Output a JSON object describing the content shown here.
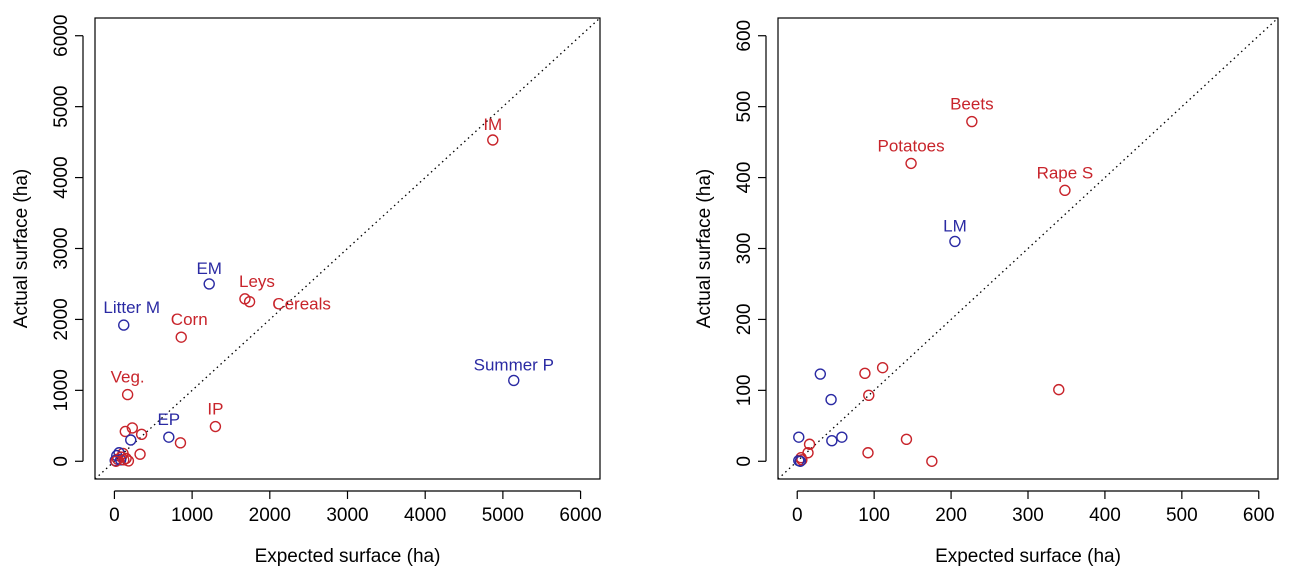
{
  "colors": {
    "red": "#c8242b",
    "blue": "#2a2aa3",
    "axis": "#000000"
  },
  "chart_data": [
    {
      "type": "scatter",
      "xlabel": "Expected surface (ha)",
      "ylabel": "Actual surface (ha)",
      "xlim": [
        -250,
        6250
      ],
      "ylim": [
        -250,
        6250
      ],
      "xticks": [
        0,
        1000,
        2000,
        3000,
        4000,
        5000,
        6000
      ],
      "yticks": [
        0,
        1000,
        2000,
        3000,
        4000,
        5000,
        6000
      ],
      "reference_line": "y = x",
      "points": [
        {
          "x": 4870,
          "y": 4530,
          "color": "red",
          "label": "IM"
        },
        {
          "x": 1220,
          "y": 2500,
          "color": "blue",
          "label": "EM"
        },
        {
          "x": 1680,
          "y": 2290,
          "color": "red",
          "label": "Leys"
        },
        {
          "x": 1740,
          "y": 2250,
          "color": "red",
          "label": "Cereals"
        },
        {
          "x": 120,
          "y": 1920,
          "color": "blue",
          "label": "Litter M"
        },
        {
          "x": 860,
          "y": 1750,
          "color": "red",
          "label": "Corn"
        },
        {
          "x": 5140,
          "y": 1140,
          "color": "blue",
          "label": "Summer P"
        },
        {
          "x": 170,
          "y": 940,
          "color": "red",
          "label": "Veg."
        },
        {
          "x": 1300,
          "y": 490,
          "color": "red",
          "label": "IP"
        },
        {
          "x": 700,
          "y": 340,
          "color": "blue",
          "label": "EP"
        },
        {
          "x": 230,
          "y": 470,
          "color": "red",
          "label": ""
        },
        {
          "x": 140,
          "y": 420,
          "color": "red",
          "label": ""
        },
        {
          "x": 350,
          "y": 380,
          "color": "red",
          "label": ""
        },
        {
          "x": 210,
          "y": 300,
          "color": "blue",
          "label": ""
        },
        {
          "x": 850,
          "y": 260,
          "color": "red",
          "label": ""
        },
        {
          "x": 330,
          "y": 100,
          "color": "red",
          "label": ""
        },
        {
          "x": 110,
          "y": 110,
          "color": "red",
          "label": ""
        },
        {
          "x": 60,
          "y": 120,
          "color": "blue",
          "label": ""
        },
        {
          "x": 30,
          "y": 80,
          "color": "blue",
          "label": ""
        },
        {
          "x": 90,
          "y": 60,
          "color": "red",
          "label": ""
        },
        {
          "x": 40,
          "y": 30,
          "color": "red",
          "label": ""
        },
        {
          "x": 10,
          "y": 10,
          "color": "blue",
          "label": ""
        },
        {
          "x": 80,
          "y": 20,
          "color": "blue",
          "label": ""
        },
        {
          "x": 150,
          "y": 40,
          "color": "red",
          "label": ""
        },
        {
          "x": 180,
          "y": 5,
          "color": "red",
          "label": ""
        },
        {
          "x": 20,
          "y": 0,
          "color": "red",
          "label": ""
        },
        {
          "x": 120,
          "y": 20,
          "color": "red",
          "label": ""
        }
      ]
    },
    {
      "type": "scatter",
      "xlabel": "Expected surface (ha)",
      "ylabel": "Actual surface (ha)",
      "xlim": [
        -25,
        625
      ],
      "ylim": [
        -25,
        625
      ],
      "xticks": [
        0,
        100,
        200,
        300,
        400,
        500,
        600
      ],
      "yticks": [
        0,
        100,
        200,
        300,
        400,
        500,
        600
      ],
      "reference_line": "y = x",
      "points": [
        {
          "x": 227,
          "y": 479,
          "color": "red",
          "label": "Beets"
        },
        {
          "x": 148,
          "y": 420,
          "color": "red",
          "label": "Potatoes"
        },
        {
          "x": 348,
          "y": 382,
          "color": "red",
          "label": "Rape S"
        },
        {
          "x": 205,
          "y": 310,
          "color": "blue",
          "label": "LM"
        },
        {
          "x": 30,
          "y": 123,
          "color": "blue",
          "label": ""
        },
        {
          "x": 88,
          "y": 124,
          "color": "red",
          "label": ""
        },
        {
          "x": 111,
          "y": 132,
          "color": "red",
          "label": ""
        },
        {
          "x": 340,
          "y": 101,
          "color": "red",
          "label": ""
        },
        {
          "x": 93,
          "y": 93,
          "color": "red",
          "label": ""
        },
        {
          "x": 44,
          "y": 87,
          "color": "blue",
          "label": ""
        },
        {
          "x": 2,
          "y": 34,
          "color": "blue",
          "label": ""
        },
        {
          "x": 45,
          "y": 29,
          "color": "blue",
          "label": ""
        },
        {
          "x": 58,
          "y": 34,
          "color": "blue",
          "label": ""
        },
        {
          "x": 142,
          "y": 31,
          "color": "red",
          "label": ""
        },
        {
          "x": 16,
          "y": 24,
          "color": "red",
          "label": ""
        },
        {
          "x": 14,
          "y": 12,
          "color": "red",
          "label": ""
        },
        {
          "x": 92,
          "y": 12,
          "color": "red",
          "label": ""
        },
        {
          "x": 175,
          "y": 0,
          "color": "red",
          "label": ""
        },
        {
          "x": 5,
          "y": 5,
          "color": "red",
          "label": ""
        },
        {
          "x": 2,
          "y": 1,
          "color": "blue",
          "label": ""
        },
        {
          "x": 6,
          "y": 2,
          "color": "red",
          "label": ""
        },
        {
          "x": 4,
          "y": 0,
          "color": "blue",
          "label": ""
        }
      ]
    }
  ]
}
